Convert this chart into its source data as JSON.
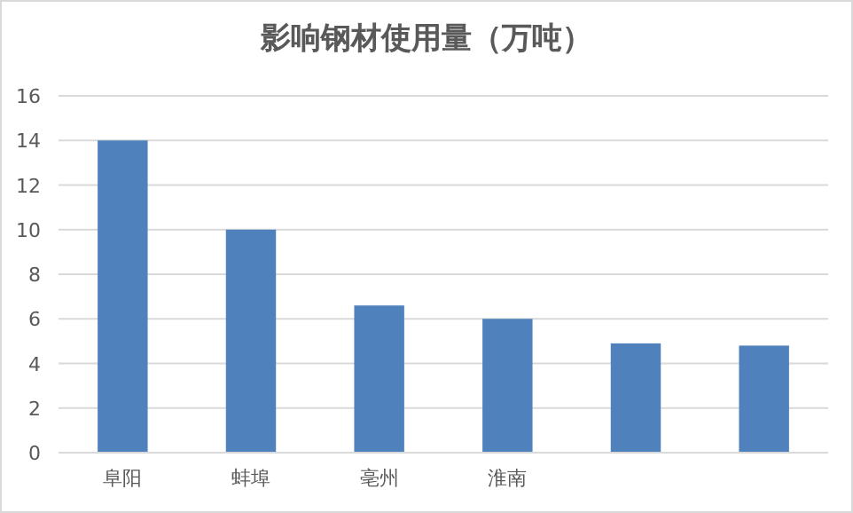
{
  "chart_data": {
    "type": "bar",
    "title": "影响钢材使用量（万吨）",
    "categories": [
      "阜阳",
      "蚌埠",
      "亳州",
      "淮南",
      null,
      null
    ],
    "values": [
      14,
      10,
      6.6,
      6,
      4.9,
      4.8
    ],
    "color": "#4f81bd",
    "ylim": [
      0,
      16
    ],
    "yticks": [
      0,
      2,
      4,
      6,
      8,
      10,
      12,
      14,
      16
    ],
    "grid": "y"
  }
}
